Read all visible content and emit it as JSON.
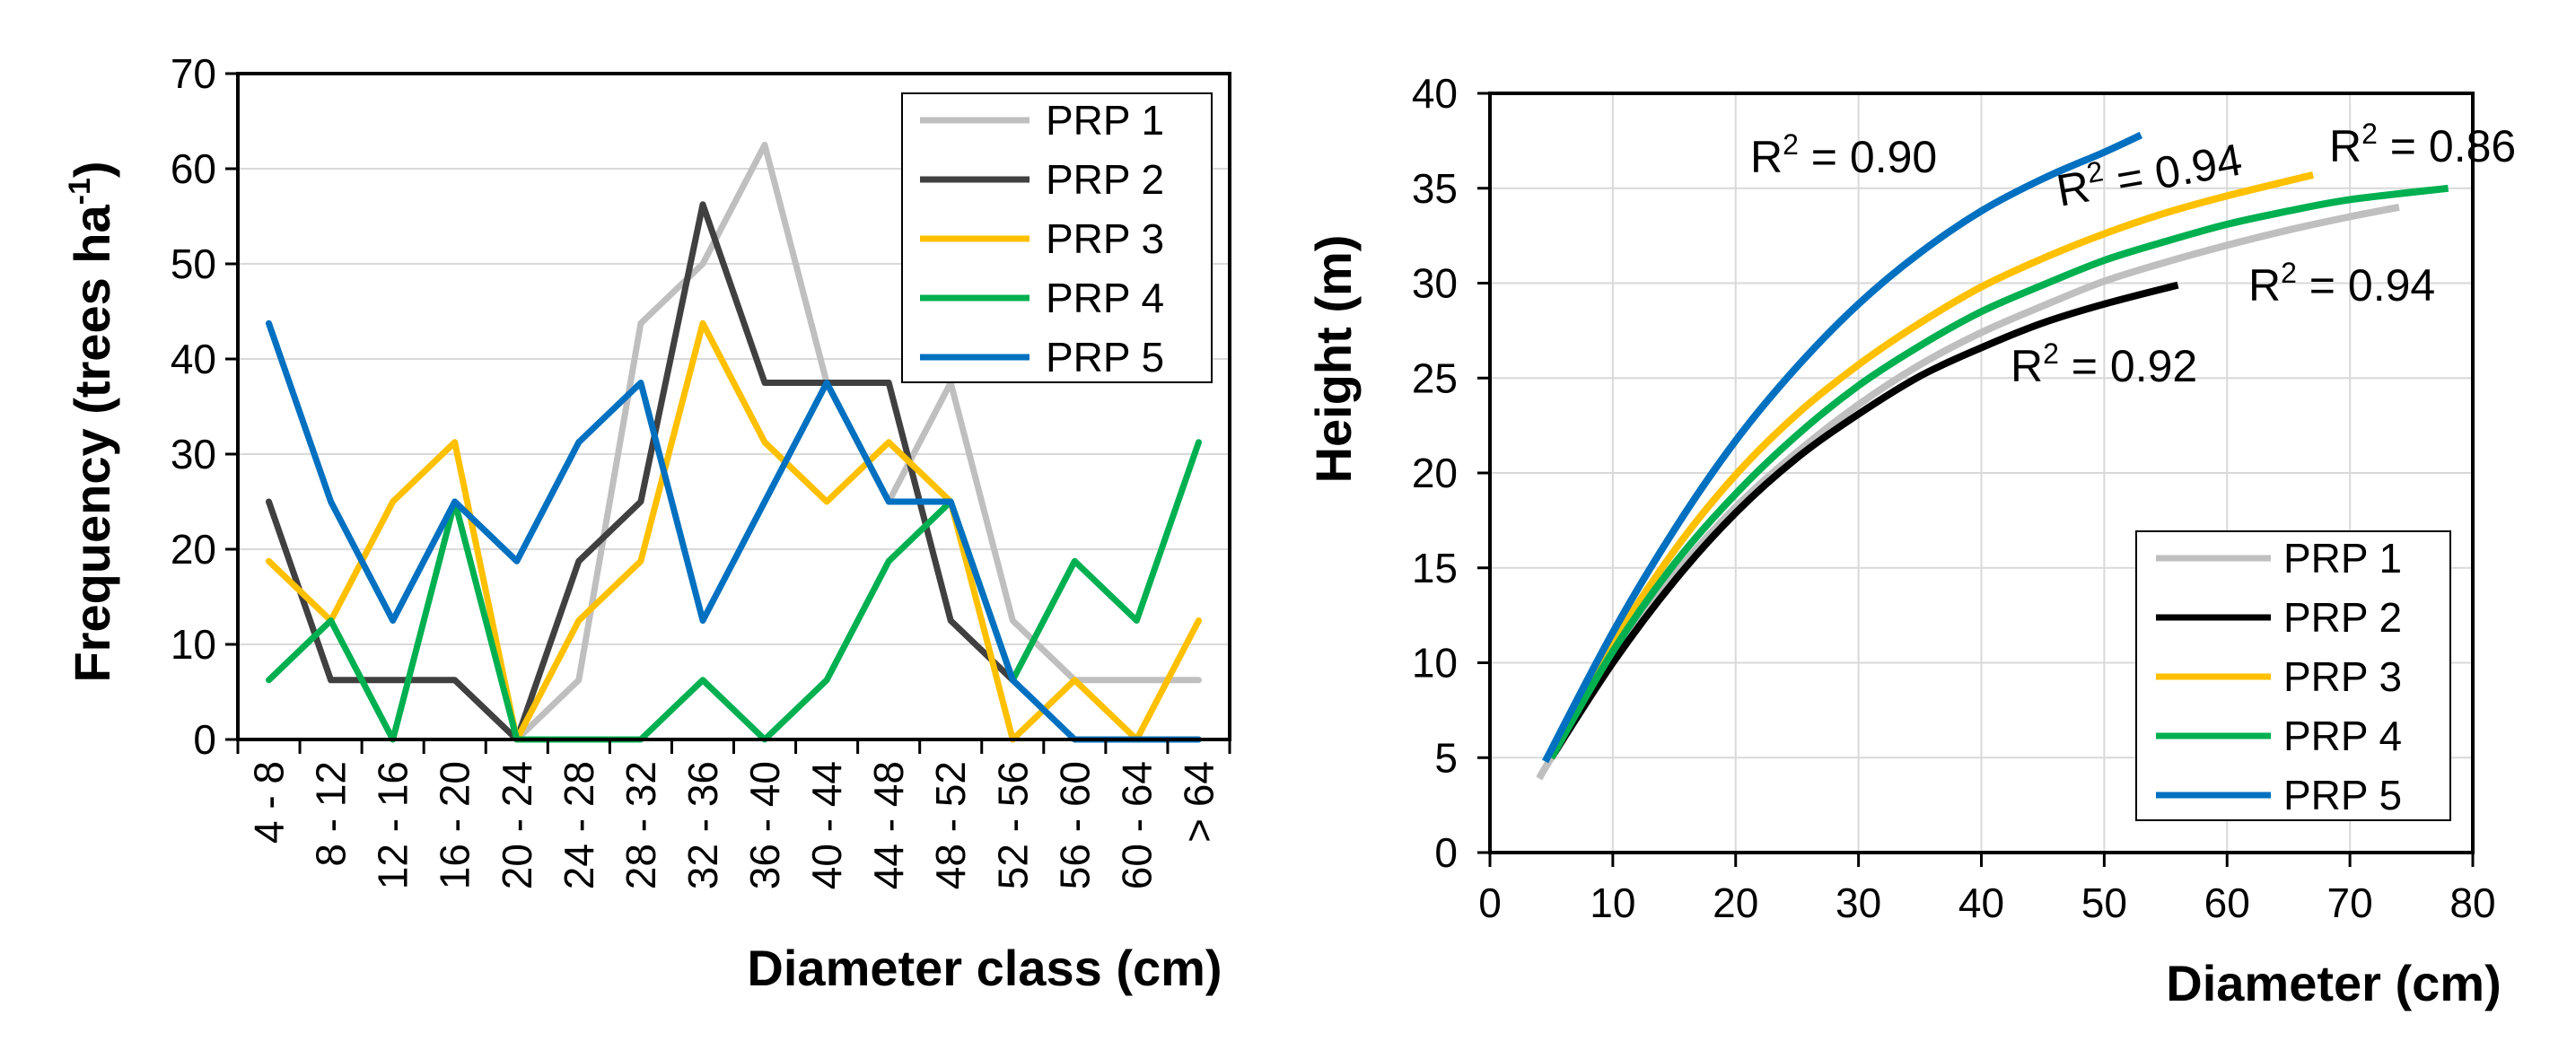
{
  "chart_data": [
    {
      "type": "line",
      "title": "",
      "xlabel": "Diameter class (cm)",
      "ylabel_main": "Frequency (trees ha",
      "ylabel_sup": "-1",
      "ylabel_end": ")",
      "ylim": [
        0,
        70
      ],
      "yticks": [
        0,
        10,
        20,
        30,
        40,
        50,
        60,
        70
      ],
      "grid": true,
      "legend": "top-right",
      "categories": [
        "4 - 8",
        "8 - 12",
        "12 - 16",
        "16 - 20",
        "20 - 24",
        "24 - 28",
        "28 - 32",
        "32 - 36",
        "36 - 40",
        "40 - 44",
        "44 - 48",
        "48 - 52",
        "52 - 56",
        "56 - 60",
        "60 - 64",
        "> 64"
      ],
      "series": [
        {
          "name": "PRP 1",
          "color": "#BFBFBF",
          "values": [
            null,
            null,
            null,
            null,
            0,
            6.25,
            43.75,
            50,
            62.5,
            37.5,
            25,
            37.5,
            12.5,
            6.25,
            6.25,
            6.25
          ]
        },
        {
          "name": "PRP 2",
          "color": "#404040",
          "values": [
            25,
            6.25,
            6.25,
            6.25,
            0,
            18.75,
            25,
            56.25,
            37.5,
            37.5,
            37.5,
            12.5,
            6.25,
            null,
            null,
            null
          ]
        },
        {
          "name": "PRP 3",
          "color": "#FFC000",
          "values": [
            18.75,
            12.5,
            25,
            31.25,
            0,
            12.5,
            18.75,
            43.75,
            31.25,
            25,
            31.25,
            25,
            0,
            6.25,
            0,
            12.5
          ]
        },
        {
          "name": "PRP 4",
          "color": "#00B050",
          "values": [
            6.25,
            12.5,
            0,
            25,
            0,
            0,
            0,
            6.25,
            0,
            6.25,
            18.75,
            25,
            6.25,
            18.75,
            12.5,
            31.25
          ]
        },
        {
          "name": "PRP 5",
          "color": "#0070C0",
          "values": [
            43.75,
            25,
            12.5,
            25,
            18.75,
            31.25,
            37.5,
            12.5,
            25,
            37.5,
            25,
            25,
            6.25,
            0,
            0,
            0
          ]
        }
      ]
    },
    {
      "type": "line",
      "title": "",
      "xlabel": "Diameter (cm)",
      "ylabel": "Height (m)",
      "xlim": [
        0,
        80
      ],
      "ylim": [
        0,
        40
      ],
      "xticks": [
        0,
        10,
        20,
        30,
        40,
        50,
        60,
        70,
        80
      ],
      "yticks": [
        0,
        5,
        10,
        15,
        20,
        25,
        30,
        35,
        40
      ],
      "grid": true,
      "legend": "bottom-right",
      "series": [
        {
          "name": "PRP 1",
          "color": "#BFBFBF",
          "r2": "0.94",
          "x": [
            4,
            5,
            10,
            15,
            20,
            25,
            30,
            35,
            40,
            45,
            50,
            55,
            60,
            65,
            70,
            74
          ],
          "y": [
            3.9,
            5.0,
            10.2,
            14.6,
            18.2,
            21.1,
            23.6,
            25.7,
            27.4,
            28.8,
            30.1,
            31.1,
            32.0,
            32.8,
            33.5,
            34.0
          ]
        },
        {
          "name": "PRP 2",
          "color": "#000000",
          "r2": "0.92",
          "x": [
            5,
            10,
            15,
            20,
            25,
            30,
            35,
            40,
            45,
            50,
            56
          ],
          "y": [
            5.0,
            10.0,
            14.3,
            17.9,
            20.8,
            23.1,
            25.1,
            26.6,
            27.9,
            28.9,
            29.9
          ]
        },
        {
          "name": "PRP 3",
          "color": "#FFC000",
          "r2": "0.94",
          "x": [
            5,
            10,
            15,
            20,
            25,
            30,
            35,
            40,
            45,
            50,
            55,
            60,
            67
          ],
          "y": [
            5.0,
            11.0,
            15.9,
            19.9,
            23.1,
            25.7,
            27.9,
            29.8,
            31.3,
            32.6,
            33.7,
            34.6,
            35.7
          ]
        },
        {
          "name": "PRP 4",
          "color": "#00B050",
          "r2": "0.86",
          "x": [
            5,
            10,
            15,
            20,
            25,
            30,
            35,
            40,
            45,
            50,
            55,
            60,
            65,
            70,
            78
          ],
          "y": [
            5.0,
            10.6,
            15.2,
            18.9,
            22.0,
            24.6,
            26.7,
            28.5,
            29.9,
            31.2,
            32.2,
            33.1,
            33.8,
            34.4,
            35.0
          ]
        },
        {
          "name": "PRP 5",
          "color": "#0070C0",
          "r2": "0.90",
          "x": [
            4.5,
            10,
            15,
            20,
            25,
            30,
            35,
            40,
            45,
            50,
            53
          ],
          "y": [
            4.8,
            11.6,
            17.0,
            21.7,
            25.6,
            28.9,
            31.6,
            33.8,
            35.5,
            36.9,
            37.8
          ]
        }
      ],
      "annotations": [
        {
          "prefix": "R",
          "sup": "2",
          "text": " = 0.90"
        },
        {
          "prefix": "R",
          "sup": "2",
          "text": " = 0.94"
        },
        {
          "prefix": "R",
          "sup": "2",
          "text": " = 0.86"
        },
        {
          "prefix": "R",
          "sup": "2",
          "text": " = 0.94"
        },
        {
          "prefix": "R",
          "sup": "2",
          "text": " = 0.92"
        }
      ]
    }
  ]
}
